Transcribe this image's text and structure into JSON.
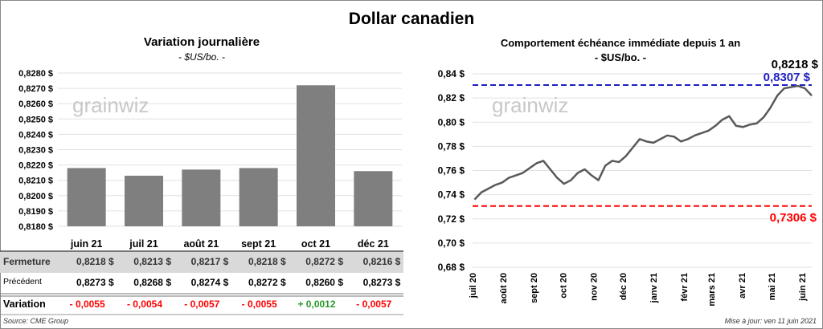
{
  "title": "Dollar canadien",
  "source": "Source: CME Group",
  "updated": "Mise à jour: ven 11 juin 2021",
  "watermark": "grainwiz",
  "colors": {
    "bar": "#7f7f7f",
    "line": "#595959",
    "max": "#1f1fbf",
    "min": "#ff0000",
    "neg": "#ff0000",
    "pos": "#2a9a2a"
  },
  "table": {
    "rows": [
      {
        "label": "Fermeture",
        "values": [
          "0,8218 $",
          "0,8213 $",
          "0,8217 $",
          "0,8218 $",
          "0,8272 $",
          "0,8216 $"
        ]
      },
      {
        "label": "Précédent",
        "values": [
          "0,8273 $",
          "0,8268 $",
          "0,8274 $",
          "0,8272 $",
          "0,8260 $",
          "0,8273 $"
        ]
      },
      {
        "label": "Variation",
        "values": [
          "- 0,0055",
          "- 0,0054",
          "- 0,0057",
          "- 0,0055",
          "+ 0,0012",
          "- 0,0057"
        ]
      }
    ]
  },
  "chart_data": [
    {
      "type": "bar",
      "title": "Variation  journalière",
      "subtitle": "- $US/bo. -",
      "categories": [
        "juin 21",
        "juil 21",
        "août 21",
        "sept 21",
        "oct 21",
        "déc 21"
      ],
      "values": [
        0.8218,
        0.8213,
        0.8217,
        0.8218,
        0.8272,
        0.8216
      ],
      "ylim": [
        0.818,
        0.828
      ],
      "yticks": [
        "0,8180 $",
        "0,8190 $",
        "0,8200 $",
        "0,8210 $",
        "0,8220 $",
        "0,8230 $",
        "0,8240 $",
        "0,8250 $",
        "0,8260 $",
        "0,8270 $",
        "0,8280 $"
      ],
      "grid": true
    },
    {
      "type": "line",
      "title": "Comportement échéance immédiate depuis 1 an",
      "subtitle": "- $US/bo. -",
      "ylim": [
        0.68,
        0.84
      ],
      "yticks": [
        "0,68 $",
        "0,70 $",
        "0,72 $",
        "0,74 $",
        "0,76 $",
        "0,78 $",
        "0,80 $",
        "0,82 $",
        "0,84 $"
      ],
      "xlim": [
        "2020-07-01",
        "2021-06-11"
      ],
      "xticks": [
        {
          "date": "2020-07-01",
          "label": "juil 20"
        },
        {
          "date": "2020-08-01",
          "label": "août 20"
        },
        {
          "date": "2020-09-01",
          "label": "sept 20"
        },
        {
          "date": "2020-10-01",
          "label": "oct 20"
        },
        {
          "date": "2020-11-01",
          "label": "nov 20"
        },
        {
          "date": "2020-12-01",
          "label": "déc 20"
        },
        {
          "date": "2021-01-01",
          "label": "janv 21"
        },
        {
          "date": "2021-02-01",
          "label": "févr 21"
        },
        {
          "date": "2021-03-01",
          "label": "mars 21"
        },
        {
          "date": "2021-04-01",
          "label": "avr 21"
        },
        {
          "date": "2021-05-01",
          "label": "mai 21"
        },
        {
          "date": "2021-06-01",
          "label": "juin 21"
        }
      ],
      "x": [
        "2020-07-03",
        "2020-07-10",
        "2020-07-17",
        "2020-07-24",
        "2020-07-31",
        "2020-08-07",
        "2020-08-14",
        "2020-08-21",
        "2020-08-28",
        "2020-09-04",
        "2020-09-11",
        "2020-09-18",
        "2020-09-25",
        "2020-10-02",
        "2020-10-09",
        "2020-10-16",
        "2020-10-23",
        "2020-10-30",
        "2020-11-06",
        "2020-11-13",
        "2020-11-20",
        "2020-11-27",
        "2020-12-04",
        "2020-12-11",
        "2020-12-18",
        "2020-12-25",
        "2021-01-01",
        "2021-01-08",
        "2021-01-15",
        "2021-01-22",
        "2021-01-29",
        "2021-02-05",
        "2021-02-12",
        "2021-02-19",
        "2021-02-26",
        "2021-03-05",
        "2021-03-12",
        "2021-03-19",
        "2021-03-26",
        "2021-04-02",
        "2021-04-09",
        "2021-04-16",
        "2021-04-23",
        "2021-04-30",
        "2021-05-07",
        "2021-05-14",
        "2021-05-21",
        "2021-05-28",
        "2021-06-04",
        "2021-06-11"
      ],
      "values": [
        0.736,
        0.742,
        0.745,
        0.748,
        0.75,
        0.754,
        0.756,
        0.758,
        0.762,
        0.766,
        0.768,
        0.761,
        0.754,
        0.749,
        0.752,
        0.758,
        0.761,
        0.756,
        0.752,
        0.764,
        0.768,
        0.767,
        0.772,
        0.779,
        0.786,
        0.784,
        0.783,
        0.786,
        0.789,
        0.788,
        0.784,
        0.786,
        0.789,
        0.791,
        0.793,
        0.797,
        0.802,
        0.805,
        0.797,
        0.796,
        0.798,
        0.799,
        0.804,
        0.812,
        0.822,
        0.828,
        0.829,
        0.83,
        0.828,
        0.822
      ],
      "last_label": "0,8218 $",
      "max": {
        "value": 0.8307,
        "label": "0,8307 $"
      },
      "min": {
        "value": 0.7306,
        "label": "0,7306 $"
      },
      "grid": true
    }
  ]
}
